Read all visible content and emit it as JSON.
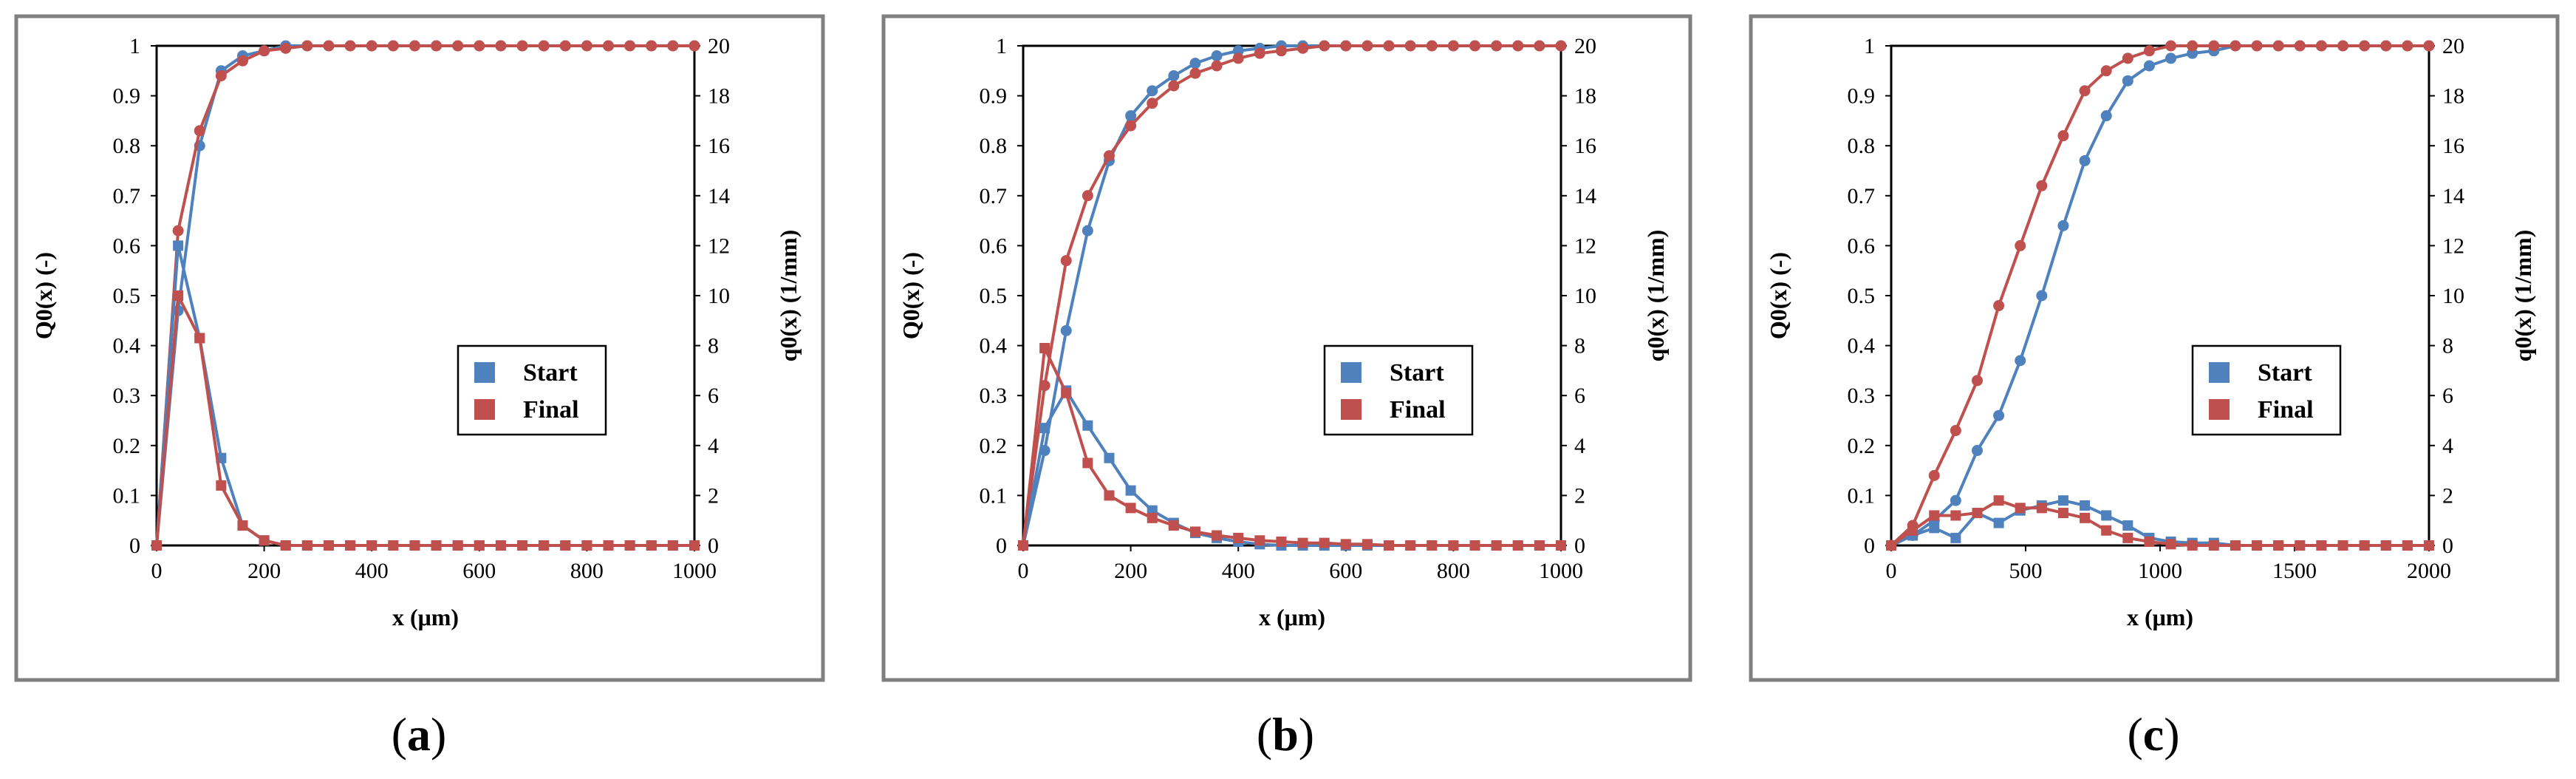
{
  "colors": {
    "start": "#4f81bd",
    "final": "#c0504d"
  },
  "captions": [
    {
      "open": "(",
      "letter": "a",
      "close": ")"
    },
    {
      "open": "(",
      "letter": "b",
      "close": ")"
    },
    {
      "open": "(",
      "letter": "c",
      "close": ")"
    }
  ],
  "chart_data": [
    {
      "type": "line",
      "panel": "a",
      "xlabel": "x (μm)",
      "ylabel": "Q0(x) (-)",
      "ylabel2": "q0(x)  (1/mm)",
      "xlim": [
        0,
        1000
      ],
      "ylim": [
        0,
        1
      ],
      "ylim2": [
        0,
        20
      ],
      "xticks": [
        "0",
        "200",
        "400",
        "600",
        "800",
        "1000"
      ],
      "yticks": [
        "0",
        "0.1",
        "0.2",
        "0.3",
        "0.4",
        "0.5",
        "0.6",
        "0.7",
        "0.8",
        "0.9",
        "1"
      ],
      "yticks2": [
        "0",
        "2",
        "4",
        "6",
        "8",
        "10",
        "12",
        "14",
        "16",
        "18",
        "20"
      ],
      "legend": {
        "position": "center-right",
        "entries": [
          "Start",
          "Final"
        ]
      },
      "series": [
        {
          "name": "Start",
          "kind": "cumulative",
          "marker": "circle",
          "x": [
            0,
            40,
            80,
            120,
            160,
            200,
            240,
            280,
            320,
            360,
            400,
            440,
            480,
            520,
            560,
            600,
            640,
            680,
            720,
            760,
            800,
            840,
            880,
            920,
            960,
            1000
          ],
          "y": [
            0,
            0.47,
            0.8,
            0.95,
            0.98,
            0.99,
            1,
            1,
            1,
            1,
            1,
            1,
            1,
            1,
            1,
            1,
            1,
            1,
            1,
            1,
            1,
            1,
            1,
            1,
            1,
            1
          ]
        },
        {
          "name": "Final",
          "kind": "cumulative",
          "marker": "circle",
          "x": [
            0,
            40,
            80,
            120,
            160,
            200,
            240,
            280,
            320,
            360,
            400,
            440,
            480,
            520,
            560,
            600,
            640,
            680,
            720,
            760,
            800,
            840,
            880,
            920,
            960,
            1000
          ],
          "y": [
            0,
            0.63,
            0.83,
            0.94,
            0.97,
            0.99,
            0.995,
            1,
            1,
            1,
            1,
            1,
            1,
            1,
            1,
            1,
            1,
            1,
            1,
            1,
            1,
            1,
            1,
            1,
            1,
            1
          ]
        },
        {
          "name": "Start",
          "kind": "density",
          "marker": "square",
          "x": [
            0,
            40,
            80,
            120,
            160,
            200,
            240,
            280,
            320,
            360,
            400,
            440,
            480,
            520,
            560,
            600,
            640,
            680,
            720,
            760,
            800,
            840,
            880,
            920,
            960,
            1000
          ],
          "y": [
            0,
            12,
            8.3,
            3.5,
            0.8,
            0.2,
            0,
            0,
            0,
            0,
            0,
            0,
            0,
            0,
            0,
            0,
            0,
            0,
            0,
            0,
            0,
            0,
            0,
            0,
            0,
            0
          ]
        },
        {
          "name": "Final",
          "kind": "density",
          "marker": "square",
          "x": [
            0,
            40,
            80,
            120,
            160,
            200,
            240,
            280,
            320,
            360,
            400,
            440,
            480,
            520,
            560,
            600,
            640,
            680,
            720,
            760,
            800,
            840,
            880,
            920,
            960,
            1000
          ],
          "y": [
            0,
            10,
            8.3,
            2.4,
            0.8,
            0.2,
            0,
            0,
            0,
            0,
            0,
            0,
            0,
            0,
            0,
            0,
            0,
            0,
            0,
            0,
            0,
            0,
            0,
            0,
            0,
            0
          ]
        }
      ]
    },
    {
      "type": "line",
      "panel": "b",
      "xlabel": "x (μm)",
      "ylabel": "Q0(x) (-)",
      "ylabel2": "q0(x)  (1/mm)",
      "xlim": [
        0,
        1000
      ],
      "ylim": [
        0,
        1
      ],
      "ylim2": [
        0,
        20
      ],
      "xticks": [
        "0",
        "200",
        "400",
        "600",
        "800",
        "1000"
      ],
      "yticks": [
        "0",
        "0.1",
        "0.2",
        "0.3",
        "0.4",
        "0.5",
        "0.6",
        "0.7",
        "0.8",
        "0.9",
        "1"
      ],
      "yticks2": [
        "0",
        "2",
        "4",
        "6",
        "8",
        "10",
        "12",
        "14",
        "16",
        "18",
        "20"
      ],
      "legend": {
        "position": "center-right",
        "entries": [
          "Start",
          "Final"
        ]
      },
      "series": [
        {
          "name": "Start",
          "kind": "cumulative",
          "marker": "circle",
          "x": [
            0,
            40,
            80,
            120,
            160,
            200,
            240,
            280,
            320,
            360,
            400,
            440,
            480,
            520,
            560,
            600,
            640,
            680,
            720,
            760,
            800,
            840,
            880,
            920,
            960,
            1000
          ],
          "y": [
            0,
            0.19,
            0.43,
            0.63,
            0.77,
            0.86,
            0.91,
            0.94,
            0.965,
            0.98,
            0.99,
            0.995,
            1,
            1,
            1,
            1,
            1,
            1,
            1,
            1,
            1,
            1,
            1,
            1,
            1,
            1
          ]
        },
        {
          "name": "Final",
          "kind": "cumulative",
          "marker": "circle",
          "x": [
            0,
            40,
            80,
            120,
            160,
            200,
            240,
            280,
            320,
            360,
            400,
            440,
            480,
            520,
            560,
            600,
            640,
            680,
            720,
            760,
            800,
            840,
            880,
            920,
            960,
            1000
          ],
          "y": [
            0,
            0.32,
            0.57,
            0.7,
            0.78,
            0.84,
            0.885,
            0.92,
            0.945,
            0.96,
            0.975,
            0.985,
            0.99,
            0.995,
            1,
            1,
            1,
            1,
            1,
            1,
            1,
            1,
            1,
            1,
            1,
            1
          ]
        },
        {
          "name": "Start",
          "kind": "density",
          "marker": "square",
          "x": [
            0,
            40,
            80,
            120,
            160,
            200,
            240,
            280,
            320,
            360,
            400,
            440,
            480,
            520,
            560,
            600,
            640,
            680,
            720,
            760,
            800,
            840,
            880,
            920,
            960,
            1000
          ],
          "y": [
            0,
            4.7,
            6.2,
            4.8,
            3.5,
            2.2,
            1.4,
            0.9,
            0.5,
            0.3,
            0.15,
            0.05,
            0,
            0,
            0,
            0,
            0,
            0,
            0,
            0,
            0,
            0,
            0,
            0,
            0,
            0
          ]
        },
        {
          "name": "Final",
          "kind": "density",
          "marker": "square",
          "x": [
            0,
            40,
            80,
            120,
            160,
            200,
            240,
            280,
            320,
            360,
            400,
            440,
            480,
            520,
            560,
            600,
            640,
            680,
            720,
            760,
            800,
            840,
            880,
            920,
            960,
            1000
          ],
          "y": [
            0,
            7.9,
            6.1,
            3.3,
            2.0,
            1.5,
            1.1,
            0.8,
            0.55,
            0.4,
            0.3,
            0.2,
            0.15,
            0.1,
            0.1,
            0.05,
            0.05,
            0,
            0,
            0,
            0,
            0,
            0,
            0,
            0,
            0
          ]
        }
      ]
    },
    {
      "type": "line",
      "panel": "c",
      "xlabel": "x (μm)",
      "ylabel": "Q0(x) (-)",
      "ylabel2": "q0(x)  (1/mm)",
      "xlim": [
        0,
        2000
      ],
      "ylim": [
        0,
        1
      ],
      "ylim2": [
        0,
        20
      ],
      "xticks": [
        "0",
        "500",
        "1000",
        "1500",
        "2000"
      ],
      "yticks": [
        "0",
        "0.1",
        "0.2",
        "0.3",
        "0.4",
        "0.5",
        "0.6",
        "0.7",
        "0.8",
        "0.9",
        "1"
      ],
      "yticks2": [
        "0",
        "2",
        "4",
        "6",
        "8",
        "10",
        "12",
        "14",
        "16",
        "18",
        "20"
      ],
      "legend": {
        "position": "center-right",
        "entries": [
          "Start",
          "Final"
        ]
      },
      "series": [
        {
          "name": "Start",
          "kind": "cumulative",
          "marker": "circle",
          "x": [
            0,
            80,
            160,
            240,
            320,
            400,
            480,
            560,
            640,
            720,
            800,
            880,
            960,
            1040,
            1120,
            1200,
            1280,
            1360,
            1440,
            1520,
            1600,
            1680,
            1760,
            1840,
            1920,
            2000
          ],
          "y": [
            0,
            0.02,
            0.05,
            0.09,
            0.19,
            0.26,
            0.37,
            0.5,
            0.64,
            0.77,
            0.86,
            0.93,
            0.96,
            0.975,
            0.985,
            0.99,
            1,
            1,
            1,
            1,
            1,
            1,
            1,
            1,
            1,
            1
          ]
        },
        {
          "name": "Final",
          "kind": "cumulative",
          "marker": "circle",
          "x": [
            0,
            80,
            160,
            240,
            320,
            400,
            480,
            560,
            640,
            720,
            800,
            880,
            960,
            1040,
            1120,
            1200,
            1280,
            1360,
            1440,
            1520,
            1600,
            1680,
            1760,
            1840,
            1920,
            2000
          ],
          "y": [
            0,
            0.04,
            0.14,
            0.23,
            0.33,
            0.48,
            0.6,
            0.72,
            0.82,
            0.91,
            0.95,
            0.975,
            0.99,
            1,
            1,
            1,
            1,
            1,
            1,
            1,
            1,
            1,
            1,
            1,
            1,
            1
          ]
        },
        {
          "name": "Start",
          "kind": "density",
          "marker": "square",
          "x": [
            0,
            80,
            160,
            240,
            320,
            400,
            480,
            560,
            640,
            720,
            800,
            880,
            960,
            1040,
            1120,
            1200,
            1280,
            1360,
            1440,
            1520,
            1600,
            1680,
            1760,
            1840,
            1920,
            2000
          ],
          "y": [
            0,
            0.4,
            0.7,
            0.3,
            1.3,
            0.9,
            1.4,
            1.6,
            1.8,
            1.6,
            1.2,
            0.8,
            0.3,
            0.15,
            0.1,
            0.1,
            0,
            0,
            0,
            0,
            0,
            0,
            0,
            0,
            0,
            0
          ]
        },
        {
          "name": "Final",
          "kind": "density",
          "marker": "square",
          "x": [
            0,
            80,
            160,
            240,
            320,
            400,
            480,
            560,
            640,
            720,
            800,
            880,
            960,
            1040,
            1120,
            1200,
            1280,
            1360,
            1440,
            1520,
            1600,
            1680,
            1760,
            1840,
            1920,
            2000
          ],
          "y": [
            0,
            0.6,
            1.2,
            1.2,
            1.3,
            1.8,
            1.5,
            1.5,
            1.3,
            1.1,
            0.6,
            0.3,
            0.15,
            0.05,
            0,
            0,
            0,
            0,
            0,
            0,
            0,
            0,
            0,
            0,
            0,
            0
          ]
        }
      ]
    }
  ]
}
